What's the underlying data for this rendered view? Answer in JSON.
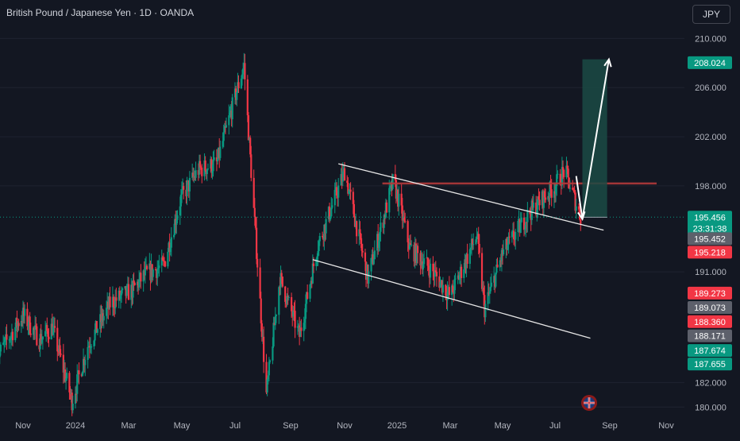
{
  "header": {
    "title": "British Pound / Japanese Yen · 1D · OANDA",
    "currency_button": "JPY"
  },
  "colors": {
    "background": "#131722",
    "up": "#089981",
    "down": "#f23645",
    "axis_text": "#b2b5be",
    "grid": "#1f2330",
    "resistance": "#b23a3a",
    "channel": "#e6e6e6",
    "target_zone": "#1b4a44"
  },
  "chart_data": {
    "type": "candlestick",
    "title": "British Pound / Japanese Yen · 1D · OANDA",
    "x_tick_labels": [
      "Nov",
      "2024",
      "Mar",
      "May",
      "Jul",
      "Sep",
      "Nov",
      "2025",
      "Mar",
      "May",
      "Jul",
      "Sep",
      "Nov"
    ],
    "y_tick_labels": [
      "210.000",
      "206.000",
      "202.000",
      "198.000",
      "191.000",
      "182.000",
      "180.000"
    ],
    "ylim": [
      179.5,
      210.8
    ],
    "grid": false,
    "price_path": [
      {
        "date": "2023-10-01",
        "price": 184.0
      },
      {
        "date": "2023-11-01",
        "price": 187.5
      },
      {
        "date": "2023-11-20",
        "price": 185.5
      },
      {
        "date": "2023-12-05",
        "price": 186.5
      },
      {
        "date": "2023-12-28",
        "price": 180.5
      },
      {
        "date": "2024-01-15",
        "price": 185.0
      },
      {
        "date": "2024-02-10",
        "price": 188.5
      },
      {
        "date": "2024-03-05",
        "price": 189.5
      },
      {
        "date": "2024-03-20",
        "price": 190.8
      },
      {
        "date": "2024-04-10",
        "price": 191.5
      },
      {
        "date": "2024-04-30",
        "price": 197.0
      },
      {
        "date": "2024-05-20",
        "price": 199.3
      },
      {
        "date": "2024-06-10",
        "price": 199.8
      },
      {
        "date": "2024-07-11",
        "price": 207.8
      },
      {
        "date": "2024-08-05",
        "price": 181.0
      },
      {
        "date": "2024-08-20",
        "price": 190.5
      },
      {
        "date": "2024-09-11",
        "price": 185.8
      },
      {
        "date": "2024-10-01",
        "price": 193.0
      },
      {
        "date": "2024-11-01",
        "price": 199.2
      },
      {
        "date": "2024-11-28",
        "price": 190.5
      },
      {
        "date": "2024-12-28",
        "price": 198.5
      },
      {
        "date": "2025-01-15",
        "price": 193.0
      },
      {
        "date": "2025-02-10",
        "price": 191.0
      },
      {
        "date": "2025-03-01",
        "price": 189.0
      },
      {
        "date": "2025-04-01",
        "price": 194.0
      },
      {
        "date": "2025-04-10",
        "price": 188.0
      },
      {
        "date": "2025-05-01",
        "price": 192.5
      },
      {
        "date": "2025-06-01",
        "price": 195.8
      },
      {
        "date": "2025-07-01",
        "price": 198.0
      },
      {
        "date": "2025-07-12",
        "price": 199.3
      },
      {
        "date": "2025-07-30",
        "price": 195.45
      }
    ],
    "resistance_level": 198.2,
    "upper_channel_line": [
      {
        "date": "2024-10-25",
        "price": 199.8
      },
      {
        "date": "2025-08-25",
        "price": 194.4
      }
    ],
    "lower_channel_line": [
      {
        "date": "2024-09-26",
        "price": 192.0
      },
      {
        "date": "2025-08-10",
        "price": 185.6
      }
    ],
    "projection": {
      "start": {
        "date": "2025-07-25",
        "price": 198.8
      },
      "pivot": {
        "date": "2025-08-01",
        "price": 195.3
      },
      "target": {
        "date": "2025-08-31",
        "price": 208.3
      },
      "zone": {
        "from_date": "2025-08-01",
        "to_date": "2025-08-29",
        "low": 195.45,
        "high": 208.3
      }
    },
    "price_labels": [
      {
        "value": "208.024",
        "price": 208.024,
        "bg": "#089981"
      },
      {
        "value": "195.456",
        "sub": "23:31:38",
        "price": 195.456,
        "bg": "#089981"
      },
      {
        "value": "195.452",
        "price": 193.7,
        "bg": "#5d606b"
      },
      {
        "value": "195.218",
        "price": 192.6,
        "bg": "#f23645"
      },
      {
        "value": "189.273",
        "price": 189.273,
        "bg": "#f23645"
      },
      {
        "value": "189.073",
        "price": 188.1,
        "bg": "#5d606b"
      },
      {
        "value": "188.360",
        "price": 186.95,
        "bg": "#f23645"
      },
      {
        "value": "188.171",
        "price": 185.8,
        "bg": "#5d606b"
      },
      {
        "value": "187.674",
        "price": 184.6,
        "bg": "#089981"
      },
      {
        "value": "187.655",
        "price": 183.5,
        "bg": "#089981"
      }
    ],
    "current_price": 195.456
  }
}
